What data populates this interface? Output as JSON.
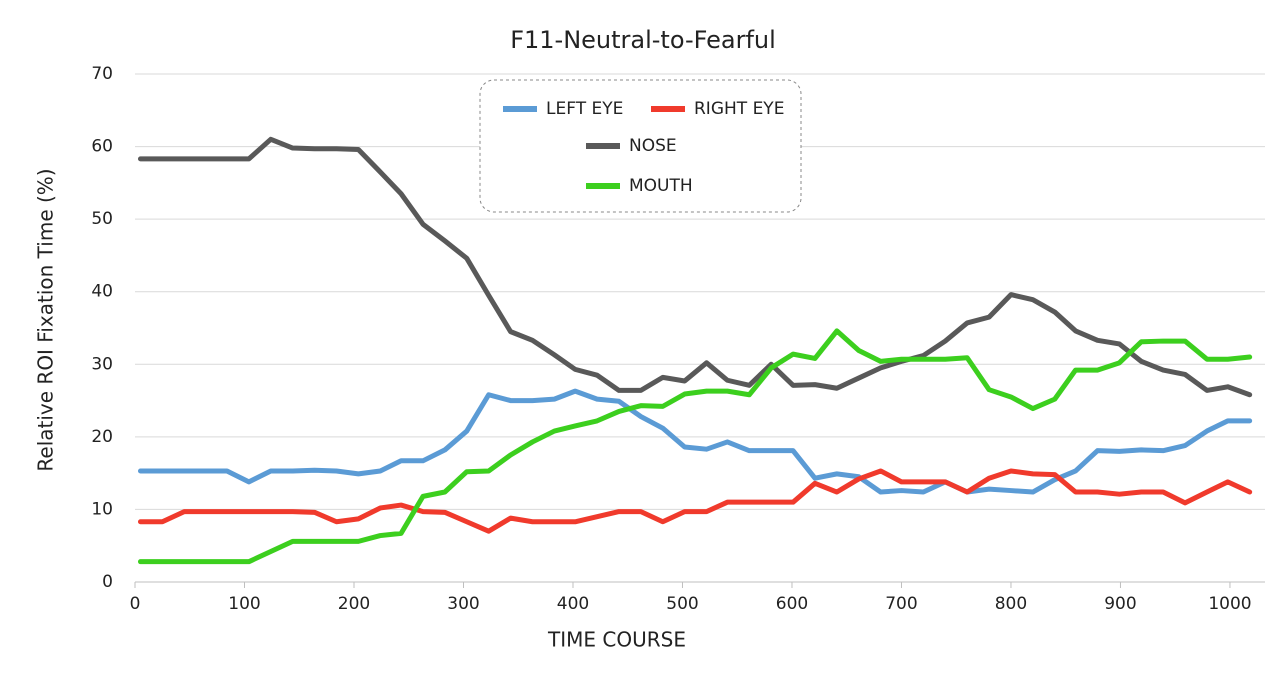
{
  "chart_data": {
    "type": "line",
    "title": "F11-Neutral-to-Fearful",
    "x_label": "TIME  COURSE",
    "y_label": "Relative  ROI  Fixation  Time  (%)",
    "x": [
      5,
      25,
      45,
      65,
      84,
      104,
      124,
      144,
      164,
      184,
      204,
      224,
      243,
      263,
      283,
      303,
      323,
      343,
      363,
      383,
      402,
      422,
      442,
      462,
      482,
      502,
      522,
      541,
      561,
      581,
      601,
      621,
      641,
      661,
      681,
      700,
      720,
      740,
      760,
      780,
      800,
      820,
      840,
      859,
      879,
      899,
      919,
      939,
      959,
      979,
      998,
      1018
    ],
    "series": [
      {
        "name": "LEFT EYE",
        "color": "#5b9bd5",
        "values": [
          15.3,
          15.3,
          15.3,
          15.3,
          15.3,
          13.8,
          15.3,
          15.3,
          15.4,
          15.3,
          14.9,
          15.3,
          16.7,
          16.7,
          18.2,
          20.8,
          25.8,
          25,
          25,
          25.2,
          26.3,
          25.2,
          24.9,
          22.8,
          21.2,
          18.6,
          18.3,
          19.3,
          18.1,
          18.1,
          18.1,
          14.3,
          14.9,
          14.5,
          12.4,
          12.6,
          12.4,
          13.8,
          12.4,
          12.8,
          12.6,
          12.4,
          14.1,
          15.3,
          18.1,
          18,
          18.2,
          18.1,
          18.8,
          20.8,
          22.2,
          22.2
        ]
      },
      {
        "name": "RIGHT EYE",
        "color": "#f03a2c",
        "values": [
          8.3,
          8.3,
          9.7,
          9.7,
          9.7,
          9.7,
          9.7,
          9.7,
          9.6,
          8.3,
          8.7,
          10.2,
          10.6,
          9.7,
          9.6,
          8.3,
          7,
          8.8,
          8.3,
          8.3,
          8.3,
          9,
          9.7,
          9.7,
          8.3,
          9.7,
          9.7,
          11,
          11,
          11,
          11,
          13.6,
          12.4,
          14.2,
          15.3,
          13.8,
          13.8,
          13.8,
          12.4,
          14.3,
          15.3,
          14.9,
          14.8,
          12.4,
          12.4,
          12.1,
          12.4,
          12.4,
          10.9,
          12.4,
          13.8,
          12.4
        ]
      },
      {
        "name": "NOSE",
        "color": "#595959",
        "values": [
          58.3,
          58.3,
          58.3,
          58.3,
          58.3,
          58.3,
          61,
          59.8,
          59.7,
          59.7,
          59.6,
          56.5,
          53.5,
          49.3,
          47,
          44.6,
          39.5,
          34.5,
          33.3,
          31.3,
          29.3,
          28.5,
          26.4,
          26.4,
          28.2,
          27.7,
          30.2,
          27.8,
          27.1,
          30,
          27.1,
          27.2,
          26.7,
          28.1,
          29.5,
          30.4,
          31.2,
          33.2,
          35.7,
          36.5,
          39.6,
          38.9,
          37.2,
          34.6,
          33.3,
          32.8,
          30.4,
          29.2,
          28.6,
          26.4,
          26.9,
          25.8
        ]
      },
      {
        "name": "MOUTH",
        "color": "#3ccf1e",
        "values": [
          2.8,
          2.8,
          2.8,
          2.8,
          2.8,
          2.8,
          4.2,
          5.6,
          5.6,
          5.6,
          5.6,
          6.4,
          6.7,
          11.8,
          12.4,
          15.2,
          15.3,
          17.5,
          19.3,
          20.8,
          21.5,
          22.2,
          23.5,
          24.3,
          24.2,
          25.9,
          26.3,
          26.3,
          25.8,
          29.5,
          31.4,
          30.8,
          34.6,
          31.9,
          30.4,
          30.7,
          30.7,
          30.7,
          30.9,
          26.5,
          25.5,
          23.9,
          25.2,
          29.2,
          29.2,
          30.2,
          33.1,
          33.2,
          33.2,
          30.7,
          30.7,
          31
        ]
      }
    ],
    "xlim": [
      0,
      1032
    ],
    "xticks": [
      0,
      100,
      200,
      300,
      400,
      500,
      600,
      700,
      800,
      900,
      1000
    ],
    "ylim": [
      0,
      70
    ],
    "yticks": [
      0,
      10,
      20,
      30,
      40,
      50,
      60,
      70
    ],
    "grid": true,
    "legend": "top"
  }
}
